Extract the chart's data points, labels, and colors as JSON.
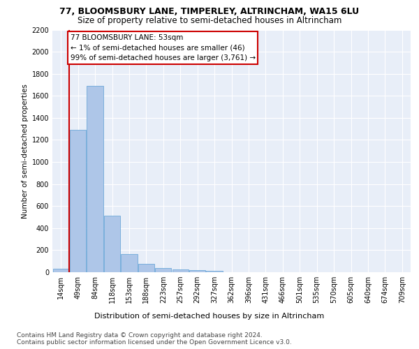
{
  "title1": "77, BLOOMSBURY LANE, TIMPERLEY, ALTRINCHAM, WA15 6LU",
  "title2": "Size of property relative to semi-detached houses in Altrincham",
  "xlabel": "Distribution of semi-detached houses by size in Altrincham",
  "ylabel": "Number of semi-detached properties",
  "categories": [
    "14sqm",
    "49sqm",
    "84sqm",
    "118sqm",
    "153sqm",
    "188sqm",
    "223sqm",
    "257sqm",
    "292sqm",
    "327sqm",
    "362sqm",
    "396sqm",
    "431sqm",
    "466sqm",
    "501sqm",
    "535sqm",
    "570sqm",
    "605sqm",
    "640sqm",
    "674sqm",
    "709sqm"
  ],
  "values": [
    30,
    1290,
    1690,
    510,
    165,
    75,
    35,
    25,
    20,
    15,
    0,
    0,
    0,
    0,
    0,
    0,
    0,
    0,
    0,
    0,
    0
  ],
  "bar_color": "#aec6e8",
  "bar_edge_color": "#5a9fd4",
  "property_line_x": 0.5,
  "property_line_color": "#cc0000",
  "annotation_text": "77 BLOOMSBURY LANE: 53sqm\n← 1% of semi-detached houses are smaller (46)\n99% of semi-detached houses are larger (3,761) →",
  "annotation_box_color": "#ffffff",
  "annotation_box_edge": "#cc0000",
  "ylim": [
    0,
    2200
  ],
  "yticks": [
    0,
    200,
    400,
    600,
    800,
    1000,
    1200,
    1400,
    1600,
    1800,
    2000,
    2200
  ],
  "background_color": "#e8eef8",
  "footer_line1": "Contains HM Land Registry data © Crown copyright and database right 2024.",
  "footer_line2": "Contains public sector information licensed under the Open Government Licence v3.0.",
  "title1_fontsize": 9,
  "title2_fontsize": 8.5,
  "xlabel_fontsize": 8,
  "ylabel_fontsize": 7.5,
  "tick_fontsize": 7,
  "annotation_fontsize": 7.5,
  "footer_fontsize": 6.5
}
